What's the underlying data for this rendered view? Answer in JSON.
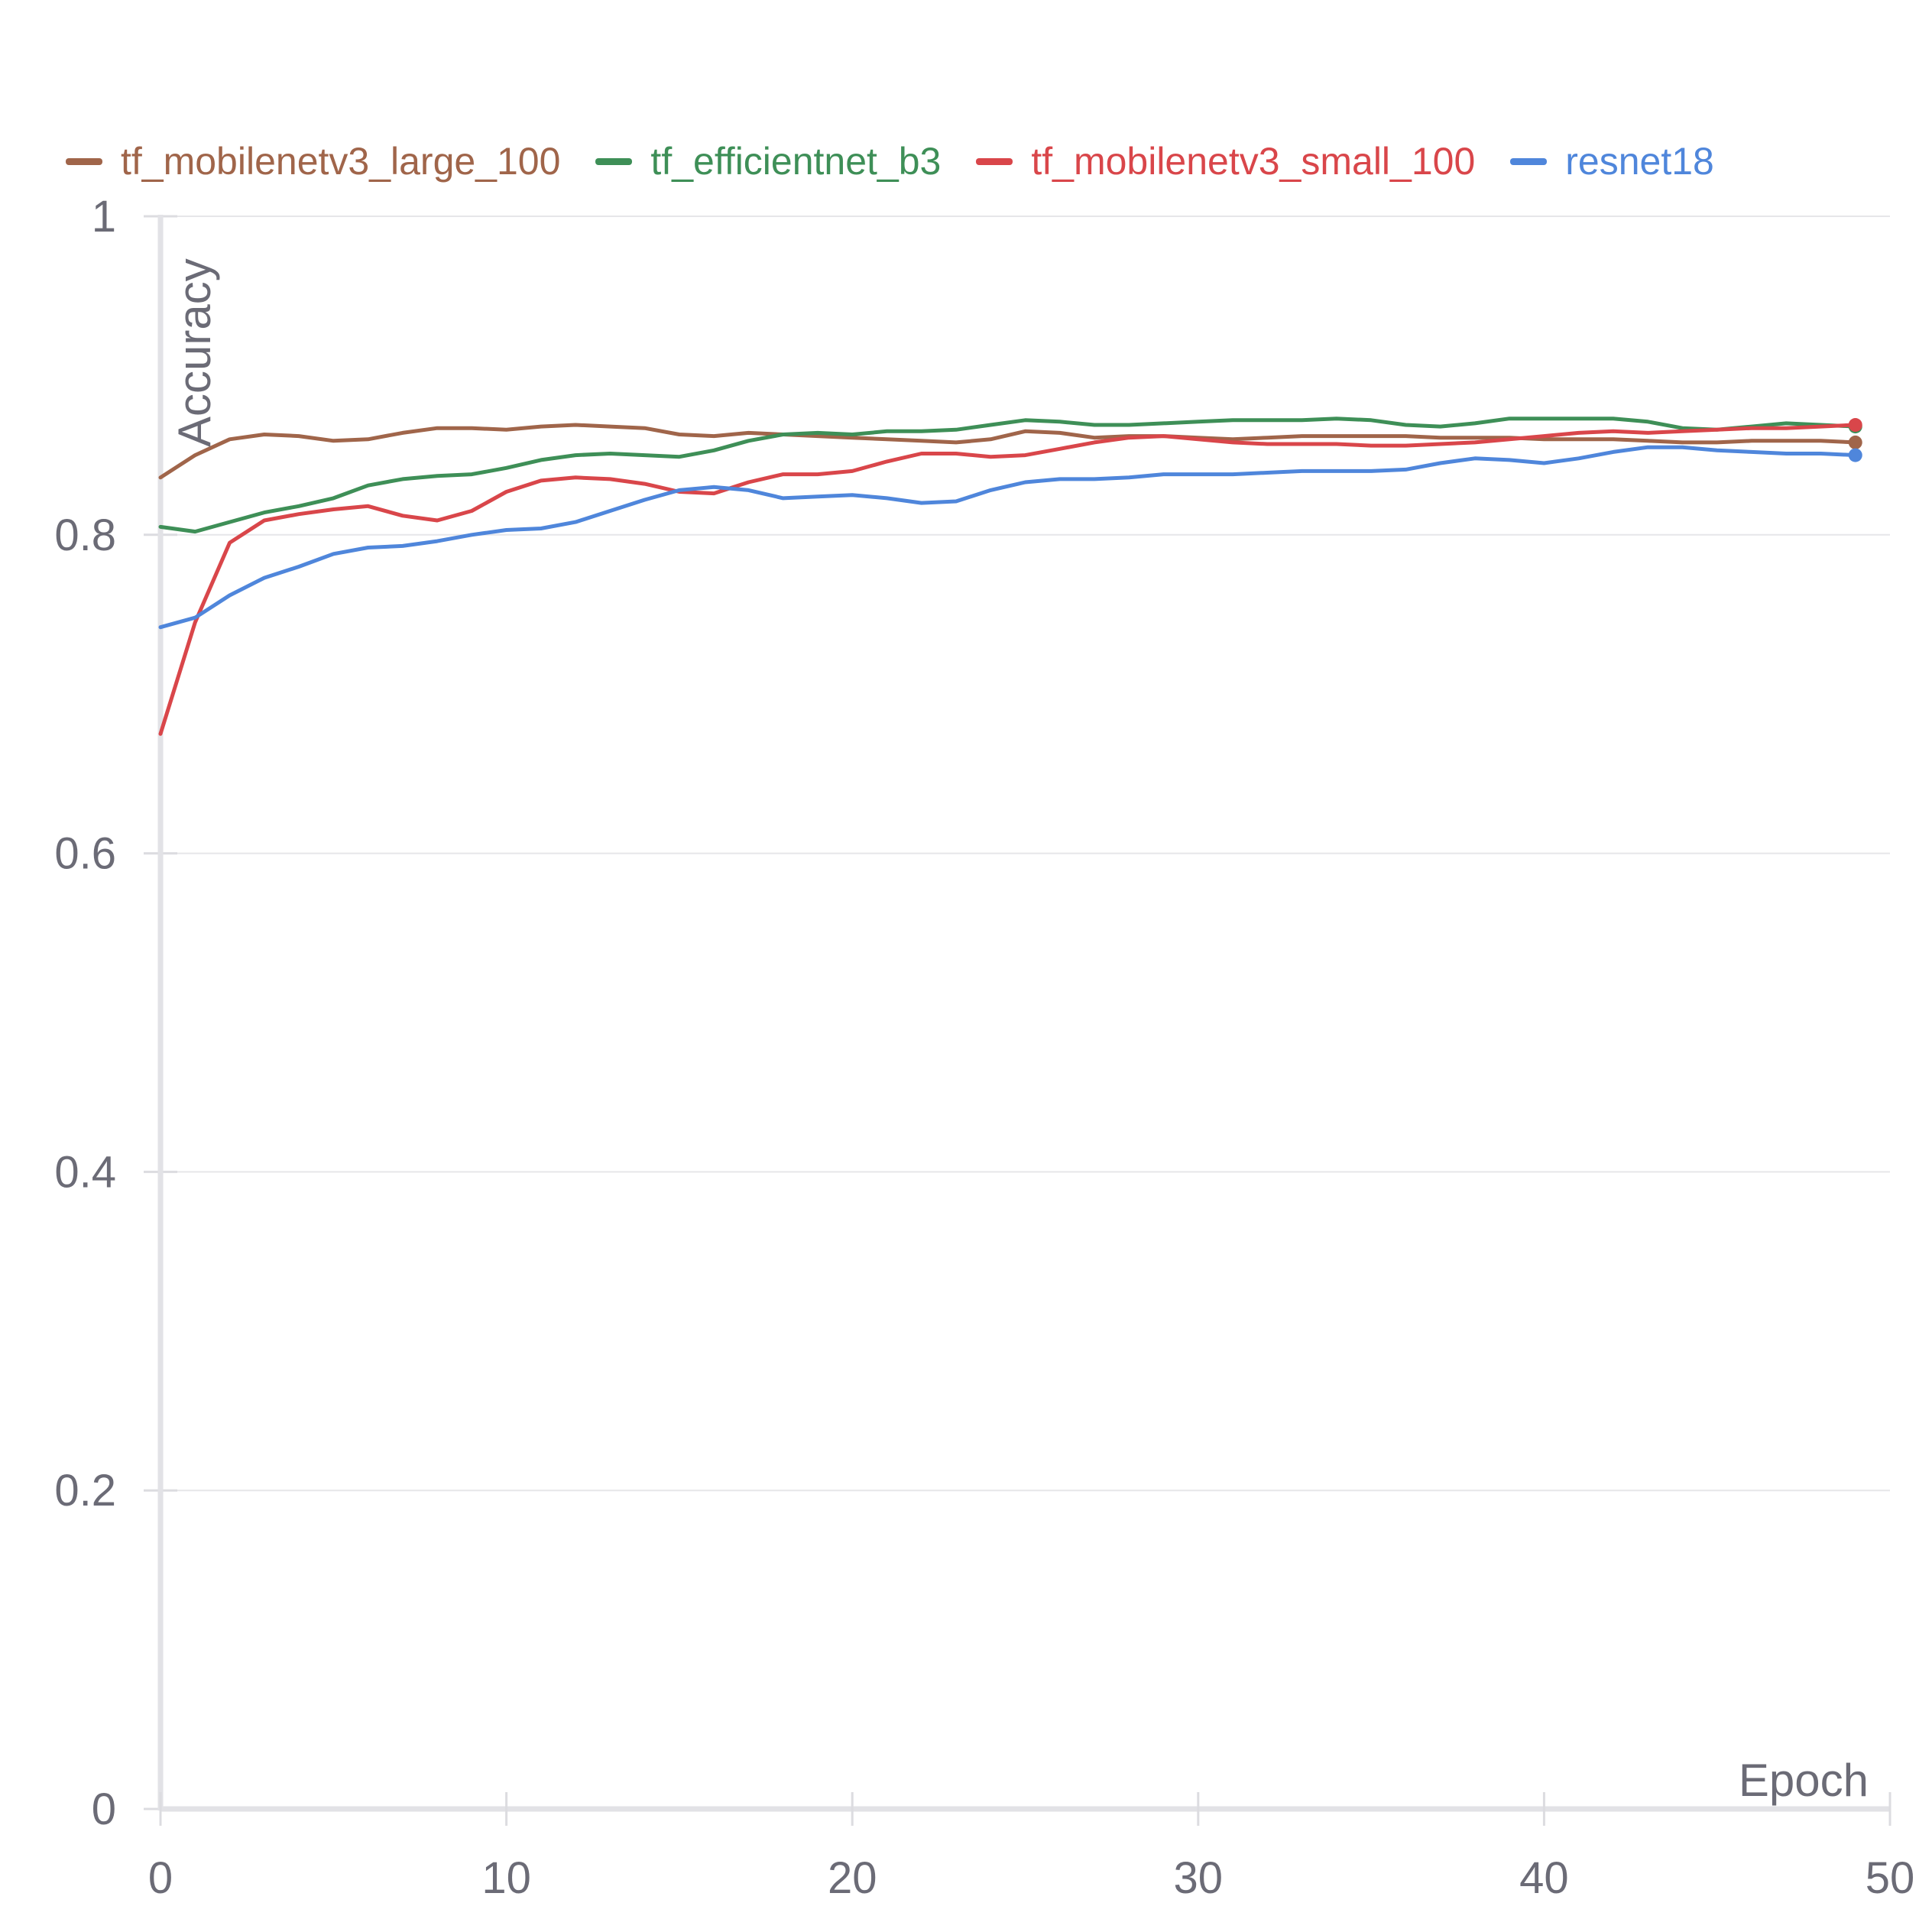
{
  "legend": [
    {
      "name": "tf_mobilenetv3_large_100",
      "color": "#a0654a"
    },
    {
      "name": "tf_efficientnet_b3",
      "color": "#3e8f57"
    },
    {
      "name": "tf_mobilenetv3_small_100",
      "color": "#d9464a"
    },
    {
      "name": "resnet18",
      "color": "#4f86db"
    }
  ],
  "chart_data": {
    "type": "line",
    "title": "",
    "xlabel": "Epoch",
    "ylabel": "Accuracy",
    "xlim": [
      0,
      50
    ],
    "ylim": [
      0,
      1
    ],
    "xticks": [
      "0",
      "10",
      "20",
      "30",
      "40",
      "50"
    ],
    "yticks": [
      "0",
      "0.2",
      "0.4",
      "0.6",
      "0.8",
      "1"
    ],
    "grid": "horizontal",
    "legend_position": "top",
    "x": [
      0,
      1,
      2,
      3,
      4,
      5,
      6,
      7,
      8,
      9,
      10,
      11,
      12,
      13,
      14,
      15,
      16,
      17,
      18,
      19,
      20,
      21,
      22,
      23,
      24,
      25,
      26,
      27,
      28,
      29,
      30,
      31,
      32,
      33,
      34,
      35,
      36,
      37,
      38,
      39,
      40,
      41,
      42,
      43,
      44,
      45,
      46,
      47,
      48,
      49
    ],
    "series": [
      {
        "name": "tf_mobilenetv3_large_100",
        "color": "#a0654a",
        "values": [
          0.836,
          0.85,
          0.86,
          0.863,
          0.862,
          0.859,
          0.86,
          0.864,
          0.867,
          0.867,
          0.866,
          0.868,
          0.869,
          0.868,
          0.867,
          0.863,
          0.862,
          0.864,
          0.863,
          0.862,
          0.861,
          0.86,
          0.859,
          0.858,
          0.86,
          0.865,
          0.864,
          0.861,
          0.862,
          0.862,
          0.861,
          0.86,
          0.861,
          0.862,
          0.862,
          0.862,
          0.862,
          0.861,
          0.861,
          0.861,
          0.86,
          0.86,
          0.86,
          0.859,
          0.858,
          0.858,
          0.859,
          0.859,
          0.859,
          0.858
        ]
      },
      {
        "name": "tf_efficientnet_b3",
        "color": "#3e8f57",
        "values": [
          0.805,
          0.802,
          0.808,
          0.814,
          0.818,
          0.823,
          0.831,
          0.835,
          0.837,
          0.838,
          0.842,
          0.847,
          0.85,
          0.851,
          0.85,
          0.849,
          0.853,
          0.859,
          0.863,
          0.864,
          0.863,
          0.865,
          0.865,
          0.866,
          0.869,
          0.872,
          0.871,
          0.869,
          0.869,
          0.87,
          0.871,
          0.872,
          0.872,
          0.872,
          0.873,
          0.872,
          0.869,
          0.868,
          0.87,
          0.873,
          0.873,
          0.873,
          0.873,
          0.871,
          0.867,
          0.866,
          0.868,
          0.87,
          0.869,
          0.868
        ]
      },
      {
        "name": "tf_mobilenetv3_small_100",
        "color": "#d9464a",
        "values": [
          0.675,
          0.745,
          0.795,
          0.809,
          0.813,
          0.816,
          0.818,
          0.812,
          0.809,
          0.815,
          0.827,
          0.834,
          0.836,
          0.835,
          0.832,
          0.827,
          0.826,
          0.833,
          0.838,
          0.838,
          0.84,
          0.846,
          0.851,
          0.851,
          0.849,
          0.85,
          0.854,
          0.858,
          0.861,
          0.862,
          0.86,
          0.858,
          0.857,
          0.857,
          0.857,
          0.856,
          0.856,
          0.857,
          0.858,
          0.86,
          0.862,
          0.864,
          0.865,
          0.864,
          0.865,
          0.866,
          0.867,
          0.867,
          0.868,
          0.869
        ]
      },
      {
        "name": "resnet18",
        "color": "#4f86db",
        "values": [
          0.742,
          0.748,
          0.762,
          0.773,
          0.78,
          0.788,
          0.792,
          0.793,
          0.796,
          0.8,
          0.803,
          0.804,
          0.808,
          0.815,
          0.822,
          0.828,
          0.83,
          0.828,
          0.823,
          0.824,
          0.825,
          0.823,
          0.82,
          0.821,
          0.828,
          0.833,
          0.835,
          0.835,
          0.836,
          0.838,
          0.838,
          0.838,
          0.839,
          0.84,
          0.84,
          0.84,
          0.841,
          0.845,
          0.848,
          0.847,
          0.845,
          0.848,
          0.852,
          0.855,
          0.855,
          0.853,
          0.852,
          0.851,
          0.851,
          0.85
        ]
      }
    ]
  }
}
